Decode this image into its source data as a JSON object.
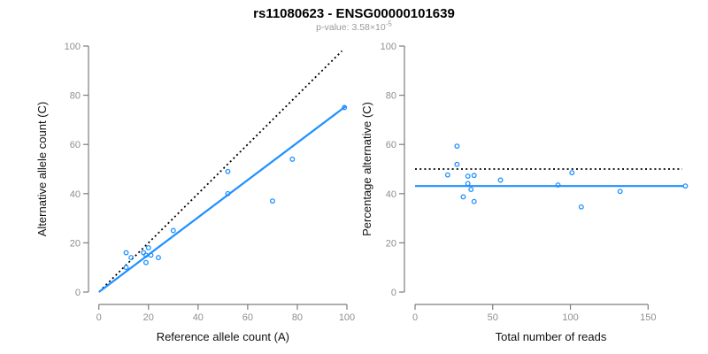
{
  "header": {
    "title": "rs11080623 - ENSG00000101639",
    "p_prefix": "p-value: 3.58×10",
    "p_exponent": "-5"
  },
  "colors": {
    "accent_blue": "#1E90FF",
    "identity_black": "#000000",
    "axis_gray": "#7d7d7d",
    "tick_label_gray": "#8f8f8f",
    "subtitle_gray": "#999999"
  },
  "chart_data": [
    {
      "type": "scatter",
      "title": "",
      "xlabel": "Reference allele count (A)",
      "ylabel": "Alternative allele count (C)",
      "xlim": [
        0,
        100
      ],
      "ylim": [
        0,
        100
      ],
      "xticks": [
        0,
        20,
        40,
        60,
        80,
        100
      ],
      "yticks": [
        0,
        20,
        40,
        60,
        80,
        100
      ],
      "grid": false,
      "legend": false,
      "point_color": "#1E90FF",
      "points": [
        [
          99,
          75
        ],
        [
          78,
          54
        ],
        [
          70,
          37
        ],
        [
          52,
          49
        ],
        [
          52,
          40
        ],
        [
          30,
          25
        ],
        [
          24,
          14
        ],
        [
          21,
          15
        ],
        [
          20,
          18
        ],
        [
          19,
          15
        ],
        [
          19,
          12
        ],
        [
          18,
          16
        ],
        [
          13,
          14
        ],
        [
          11,
          16
        ],
        [
          11,
          10
        ]
      ],
      "lines": [
        {
          "name": "identity",
          "style": "dotted",
          "color": "#000000",
          "from": [
            1.5,
            1.5
          ],
          "to": [
            98,
            98
          ]
        },
        {
          "name": "fit",
          "style": "solid",
          "color": "#1E90FF",
          "from": [
            0,
            0
          ],
          "to": [
            99.5,
            75.5
          ]
        }
      ]
    },
    {
      "type": "scatter",
      "title": "",
      "xlabel": "Total number of reads",
      "ylabel": "Percentage alternative (C)",
      "xlim": [
        0,
        175
      ],
      "ylim": [
        0,
        100
      ],
      "xticks": [
        0,
        50,
        100,
        150
      ],
      "yticks": [
        0,
        20,
        40,
        60,
        80,
        100
      ],
      "grid": false,
      "legend": false,
      "point_color": "#1E90FF",
      "points": [
        [
          174,
          43.1
        ],
        [
          132,
          40.9
        ],
        [
          107,
          34.6
        ],
        [
          101,
          48.5
        ],
        [
          92,
          43.5
        ],
        [
          55,
          45.5
        ],
        [
          38,
          47.4
        ],
        [
          38,
          36.8
        ],
        [
          36,
          41.7
        ],
        [
          34,
          47.1
        ],
        [
          34,
          44.1
        ],
        [
          31,
          38.7
        ],
        [
          27,
          59.3
        ],
        [
          27,
          51.9
        ],
        [
          21,
          47.6
        ]
      ],
      "lines": [
        {
          "name": "expected-50pct",
          "style": "dotted",
          "color": "#000000",
          "from": [
            0,
            50
          ],
          "to": [
            172,
            50
          ]
        },
        {
          "name": "observed-mean",
          "style": "solid",
          "color": "#1E90FF",
          "from": [
            0,
            43.1
          ],
          "to": [
            173,
            43.1
          ]
        }
      ]
    }
  ]
}
